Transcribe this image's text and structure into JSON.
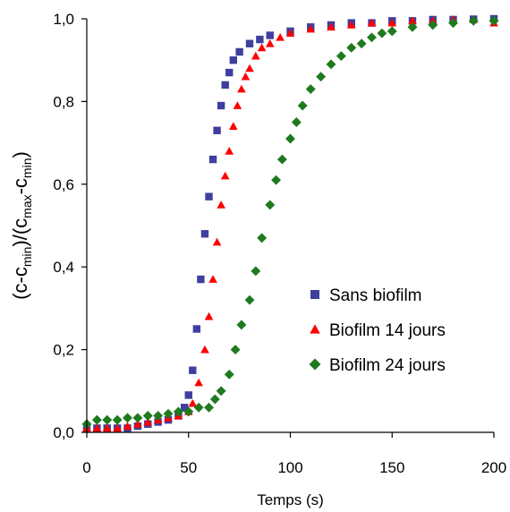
{
  "chart_data": {
    "type": "scatter",
    "xlabel": "Temps (s)",
    "ylabel_parts": [
      {
        "t": "(c-c",
        "sub": false
      },
      {
        "t": "min",
        "sub": true
      },
      {
        "t": ")/(c",
        "sub": false
      },
      {
        "t": "max",
        "sub": true
      },
      {
        "t": "-c",
        "sub": false
      },
      {
        "t": "min",
        "sub": true
      },
      {
        "t": ")",
        "sub": false
      }
    ],
    "xlim": [
      0,
      200
    ],
    "ylim": [
      0,
      1
    ],
    "xticks": [
      0,
      50,
      100,
      150,
      200
    ],
    "yticks": [
      "0,0",
      "0,2",
      "0,4",
      "0,6",
      "0,8",
      "1,0"
    ],
    "ytick_values": [
      0,
      0.2,
      0.4,
      0.6,
      0.8,
      1.0
    ],
    "legend_position": "lower-right",
    "series": [
      {
        "name": "Sans biofilm",
        "color": "#3f3f9f",
        "marker": "square",
        "x": [
          0,
          5,
          10,
          15,
          20,
          25,
          30,
          35,
          40,
          45,
          48,
          50,
          52,
          54,
          56,
          58,
          60,
          62,
          64,
          66,
          68,
          70,
          72,
          75,
          80,
          85,
          90,
          100,
          110,
          120,
          130,
          140,
          150,
          160,
          170,
          180,
          190,
          200
        ],
        "y": [
          0.01,
          0.01,
          0.01,
          0.01,
          0.01,
          0.015,
          0.02,
          0.025,
          0.03,
          0.04,
          0.06,
          0.09,
          0.15,
          0.25,
          0.37,
          0.48,
          0.57,
          0.66,
          0.73,
          0.79,
          0.84,
          0.87,
          0.9,
          0.92,
          0.94,
          0.95,
          0.96,
          0.97,
          0.98,
          0.985,
          0.99,
          0.99,
          0.995,
          0.995,
          0.998,
          0.998,
          0.999,
          1.0
        ]
      },
      {
        "name": "Biofilm 14 jours",
        "color": "#ff0000",
        "marker": "triangle",
        "x": [
          0,
          5,
          10,
          15,
          20,
          25,
          30,
          35,
          40,
          45,
          50,
          52,
          55,
          58,
          60,
          62,
          64,
          66,
          68,
          70,
          72,
          74,
          76,
          78,
          80,
          83,
          86,
          90,
          95,
          100,
          110,
          120,
          130,
          140,
          150,
          160,
          170,
          180,
          190,
          200
        ],
        "y": [
          0.01,
          0.01,
          0.01,
          0.01,
          0.015,
          0.02,
          0.025,
          0.03,
          0.035,
          0.04,
          0.05,
          0.07,
          0.12,
          0.2,
          0.28,
          0.37,
          0.46,
          0.55,
          0.62,
          0.68,
          0.74,
          0.79,
          0.83,
          0.86,
          0.88,
          0.91,
          0.93,
          0.94,
          0.955,
          0.965,
          0.975,
          0.98,
          0.985,
          0.99,
          0.99,
          0.995,
          0.995,
          0.998,
          0.998,
          0.99
        ]
      },
      {
        "name": "Biofilm 24 jours",
        "color": "#1e7a1e",
        "marker": "diamond",
        "x": [
          0,
          5,
          10,
          15,
          20,
          25,
          30,
          35,
          40,
          45,
          50,
          55,
          60,
          63,
          66,
          70,
          73,
          76,
          80,
          83,
          86,
          90,
          93,
          96,
          100,
          103,
          106,
          110,
          115,
          120,
          125,
          130,
          135,
          140,
          145,
          150,
          160,
          170,
          180,
          190,
          200
        ],
        "y": [
          0.02,
          0.03,
          0.03,
          0.03,
          0.035,
          0.035,
          0.04,
          0.04,
          0.045,
          0.05,
          0.05,
          0.06,
          0.06,
          0.08,
          0.1,
          0.14,
          0.2,
          0.26,
          0.32,
          0.39,
          0.47,
          0.55,
          0.61,
          0.66,
          0.71,
          0.75,
          0.79,
          0.83,
          0.86,
          0.89,
          0.91,
          0.93,
          0.94,
          0.955,
          0.965,
          0.97,
          0.98,
          0.985,
          0.99,
          0.995,
          0.995
        ]
      }
    ]
  }
}
